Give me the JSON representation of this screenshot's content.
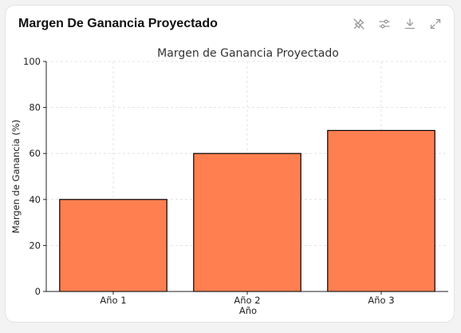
{
  "header": {
    "title": "Margen De Ganancia Proyectado"
  },
  "toolbar": {
    "buttons": [
      {
        "icon": "pin-off-icon"
      },
      {
        "icon": "settings-sliders-icon"
      },
      {
        "icon": "download-icon"
      },
      {
        "icon": "expand-icon"
      }
    ]
  },
  "colors": {
    "bar": "#ff7f50",
    "bar_edge": "#000000",
    "icon": "#9a9a9a",
    "grid": "#dcdcdc"
  },
  "chart_data": {
    "type": "bar",
    "title": "Margen de Ganancia Proyectado",
    "xlabel": "Año",
    "ylabel": "Margen de Ganancia (%)",
    "categories": [
      "Año 1",
      "Año 2",
      "Año 3"
    ],
    "values": [
      40,
      60,
      70
    ],
    "ylim": [
      0,
      100
    ],
    "yticks": [
      0,
      20,
      40,
      60,
      80,
      100
    ],
    "grid": true
  }
}
